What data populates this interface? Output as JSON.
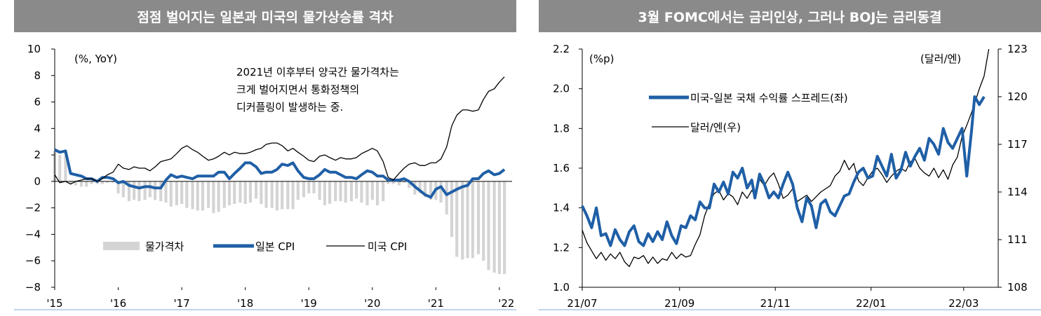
{
  "left": {
    "title": "점점 벌어지는 일본과 미국의 물가상승률 격차",
    "unit": "(%, YoY)",
    "annotation": [
      "2021년 이후부터 양국간 물가격차는",
      "크게 벌어지면서 통화정책의",
      "디커플링이 발생하는 중."
    ],
    "legend": [
      "물가격차",
      "일본 CPI",
      "미국 CPI"
    ]
  },
  "right": {
    "title": "3월 FOMC에서는 금리인상, 그러나 BOJ는 금리동결",
    "unit_left": "(%p)",
    "unit_right": "(달러/엔)",
    "legend": [
      "미국-일본 국채 수익률 스프레드(좌)",
      "달러/엔(우)"
    ]
  },
  "chart_data": [
    {
      "type": "line",
      "title": "점점 벌어지는 일본과 미국의 물가상승률 격차",
      "ylabel": "(%, YoY)",
      "ylim": [
        -8,
        10
      ],
      "yticks": [
        10,
        8,
        6,
        4,
        2,
        0,
        -2,
        -4,
        -6,
        -8
      ],
      "ytick_labels": [
        "10",
        "8",
        "6",
        "4",
        "2",
        "0",
        "−2",
        "−4",
        "−6",
        "−8"
      ],
      "xticks": [
        "'15",
        "'16",
        "'17",
        "'18",
        "'19",
        "'20",
        "'21",
        "'22"
      ],
      "xlim": [
        2015.0,
        2022.2
      ],
      "legend_position": "bottom-center",
      "series": [
        {
          "name": "물가격차",
          "kind": "bar",
          "color": "#d4d4d4",
          "x": [
            2015.0,
            2015.08,
            2015.17,
            2015.25,
            2015.33,
            2015.42,
            2015.5,
            2015.58,
            2015.67,
            2015.75,
            2015.83,
            2015.92,
            2016.0,
            2016.08,
            2016.17,
            2016.25,
            2016.33,
            2016.42,
            2016.5,
            2016.58,
            2016.67,
            2016.75,
            2016.83,
            2016.92,
            2017.0,
            2017.08,
            2017.17,
            2017.25,
            2017.33,
            2017.42,
            2017.5,
            2017.58,
            2017.67,
            2017.75,
            2017.83,
            2017.92,
            2018.0,
            2018.08,
            2018.17,
            2018.25,
            2018.33,
            2018.42,
            2018.5,
            2018.58,
            2018.67,
            2018.75,
            2018.83,
            2018.92,
            2019.0,
            2019.08,
            2019.17,
            2019.25,
            2019.33,
            2019.42,
            2019.5,
            2019.58,
            2019.67,
            2019.75,
            2019.83,
            2019.92,
            2020.0,
            2020.08,
            2020.17,
            2020.25,
            2020.33,
            2020.42,
            2020.5,
            2020.58,
            2020.67,
            2020.75,
            2020.83,
            2020.92,
            2021.0,
            2021.08,
            2021.17,
            2021.25,
            2021.33,
            2021.42,
            2021.5,
            2021.58,
            2021.67,
            2021.75,
            2021.83,
            2021.92,
            2022.0,
            2022.08
          ],
          "values": [
            2.3,
            2.0,
            2.2,
            -0.2,
            -0.3,
            -0.4,
            -0.4,
            -0.2,
            -0.2,
            -0.2,
            -0.1,
            -0.1,
            -0.9,
            -1.2,
            -1.5,
            -1.4,
            -1.5,
            -1.4,
            -1.2,
            -1.4,
            -1.5,
            -1.6,
            -1.9,
            -1.8,
            -1.7,
            -2.0,
            -2.1,
            -2.2,
            -2.2,
            -2.0,
            -2.4,
            -2.3,
            -2.0,
            -1.8,
            -1.7,
            -1.6,
            -1.7,
            -1.6,
            -1.3,
            -1.7,
            -2.0,
            -2.0,
            -2.2,
            -2.1,
            -2.1,
            -2.1,
            -1.4,
            -1.2,
            -0.9,
            -0.9,
            -1.4,
            -1.8,
            -1.7,
            -1.5,
            -1.5,
            -1.6,
            -1.5,
            -1.3,
            -1.6,
            -1.8,
            -1.4,
            -1.8,
            -1.5,
            -0.2,
            -0.2,
            -0.3,
            -0.1,
            -0.5,
            -1.0,
            -0.9,
            -1.2,
            -1.4,
            -1.4,
            -1.6,
            -2.5,
            -4.2,
            -5.7,
            -5.9,
            -5.8,
            -5.8,
            -5.5,
            -6.0,
            -6.7,
            -6.9,
            -7.0,
            -7.0
          ]
        },
        {
          "name": "일본 CPI",
          "kind": "line",
          "color": "#1f5fa6",
          "x": [
            2015.0,
            2015.08,
            2015.17,
            2015.25,
            2015.33,
            2015.42,
            2015.5,
            2015.58,
            2015.67,
            2015.75,
            2015.83,
            2015.92,
            2016.0,
            2016.08,
            2016.17,
            2016.25,
            2016.33,
            2016.42,
            2016.5,
            2016.58,
            2016.67,
            2016.75,
            2016.83,
            2016.92,
            2017.0,
            2017.08,
            2017.17,
            2017.25,
            2017.33,
            2017.42,
            2017.5,
            2017.58,
            2017.67,
            2017.75,
            2017.83,
            2017.92,
            2018.0,
            2018.08,
            2018.17,
            2018.25,
            2018.33,
            2018.42,
            2018.5,
            2018.58,
            2018.67,
            2018.75,
            2018.83,
            2018.92,
            2019.0,
            2019.08,
            2019.17,
            2019.25,
            2019.33,
            2019.42,
            2019.5,
            2019.58,
            2019.67,
            2019.75,
            2019.83,
            2019.92,
            2020.0,
            2020.08,
            2020.17,
            2020.25,
            2020.33,
            2020.42,
            2020.5,
            2020.58,
            2020.67,
            2020.75,
            2020.83,
            2020.92,
            2021.0,
            2021.08,
            2021.17,
            2021.25,
            2021.33,
            2021.42,
            2021.5,
            2021.58,
            2021.67,
            2021.75,
            2021.83,
            2021.92,
            2022.0,
            2022.08
          ],
          "values": [
            2.4,
            2.2,
            2.3,
            0.6,
            0.5,
            0.4,
            0.2,
            0.2,
            0.0,
            0.3,
            0.3,
            0.2,
            -0.1,
            0.0,
            -0.3,
            -0.4,
            -0.5,
            -0.4,
            -0.4,
            -0.5,
            -0.5,
            0.1,
            0.5,
            0.3,
            0.4,
            0.3,
            0.2,
            0.4,
            0.4,
            0.4,
            0.4,
            0.7,
            0.7,
            0.2,
            0.6,
            1.0,
            1.4,
            1.4,
            1.1,
            0.6,
            0.7,
            0.7,
            0.9,
            1.3,
            1.2,
            1.4,
            0.8,
            0.3,
            0.2,
            0.2,
            0.5,
            0.9,
            0.7,
            0.7,
            0.5,
            0.3,
            0.3,
            0.2,
            0.5,
            0.8,
            0.7,
            0.4,
            0.4,
            0.1,
            0.1,
            0.1,
            0.2,
            0.0,
            -0.4,
            -0.7,
            -1.0,
            -1.2,
            -0.6,
            -0.4,
            -1.0,
            -0.8,
            -0.6,
            -0.4,
            -0.3,
            0.2,
            0.2,
            0.6,
            0.8,
            0.5,
            0.6,
            0.9
          ]
        },
        {
          "name": "미국 CPI",
          "kind": "line",
          "color": "#000000",
          "x": [
            2015.0,
            2015.08,
            2015.17,
            2015.25,
            2015.33,
            2015.42,
            2015.5,
            2015.58,
            2015.67,
            2015.75,
            2015.83,
            2015.92,
            2016.0,
            2016.08,
            2016.17,
            2016.25,
            2016.33,
            2016.42,
            2016.5,
            2016.58,
            2016.67,
            2016.75,
            2016.83,
            2016.92,
            2017.0,
            2017.08,
            2017.17,
            2017.25,
            2017.33,
            2017.42,
            2017.5,
            2017.58,
            2017.67,
            2017.75,
            2017.83,
            2017.92,
            2018.0,
            2018.08,
            2018.17,
            2018.25,
            2018.33,
            2018.42,
            2018.5,
            2018.58,
            2018.67,
            2018.75,
            2018.83,
            2018.92,
            2019.0,
            2019.08,
            2019.17,
            2019.25,
            2019.33,
            2019.42,
            2019.5,
            2019.58,
            2019.67,
            2019.75,
            2019.83,
            2019.92,
            2020.0,
            2020.08,
            2020.17,
            2020.25,
            2020.33,
            2020.42,
            2020.5,
            2020.58,
            2020.67,
            2020.75,
            2020.83,
            2020.92,
            2021.0,
            2021.08,
            2021.17,
            2021.25,
            2021.33,
            2021.42,
            2021.5,
            2021.58,
            2021.67,
            2021.75,
            2021.83,
            2021.92,
            2022.0,
            2022.08
          ],
          "values": [
            0.5,
            -0.1,
            0.0,
            -0.2,
            0.0,
            0.1,
            0.2,
            0.2,
            0.0,
            0.2,
            0.5,
            0.7,
            1.3,
            1.0,
            0.9,
            1.1,
            1.0,
            1.0,
            0.8,
            1.1,
            1.5,
            1.6,
            1.7,
            2.1,
            2.5,
            2.7,
            2.4,
            2.2,
            1.9,
            1.6,
            1.7,
            1.9,
            2.2,
            2.0,
            2.2,
            2.1,
            2.1,
            2.2,
            2.4,
            2.5,
            2.8,
            2.9,
            2.9,
            2.7,
            2.3,
            2.5,
            2.2,
            1.9,
            1.6,
            1.5,
            1.9,
            2.0,
            1.8,
            1.6,
            1.8,
            1.7,
            1.7,
            1.8,
            2.1,
            2.3,
            2.5,
            2.3,
            1.5,
            0.3,
            0.1,
            0.6,
            1.0,
            1.3,
            1.4,
            1.2,
            1.2,
            1.4,
            1.4,
            1.7,
            2.6,
            4.2,
            5.0,
            5.4,
            5.4,
            5.3,
            5.4,
            6.2,
            6.8,
            7.0,
            7.5,
            7.9
          ]
        }
      ]
    },
    {
      "type": "line",
      "title": "3월 FOMC에서는 금리인상, 그러나 BOJ는 금리동결",
      "ylabel": "(%p)",
      "y2label": "(달러/엔)",
      "ylim": [
        1.0,
        2.2
      ],
      "y2lim": [
        108,
        123
      ],
      "yticks": [
        "1.0",
        "1.2",
        "1.4",
        "1.6",
        "1.8",
        "2.0",
        "2.2"
      ],
      "y2ticks": [
        "108",
        "111",
        "114",
        "117",
        "120",
        "123"
      ],
      "xticks": [
        "21/07",
        "21/09",
        "21/11",
        "22/01",
        "22/03"
      ],
      "x_unit": "days since 2021-07-01",
      "xlim": [
        0,
        265
      ],
      "legend_position": "top-center",
      "series": [
        {
          "name": "미국-일본 국채 수익률 스프레드(좌)",
          "axis": "left",
          "color": "#1f5fa6",
          "x": [
            0,
            3,
            6,
            9,
            12,
            15,
            18,
            21,
            24,
            27,
            30,
            33,
            36,
            39,
            42,
            45,
            48,
            51,
            54,
            57,
            60,
            63,
            66,
            69,
            72,
            75,
            78,
            81,
            84,
            87,
            90,
            93,
            96,
            99,
            102,
            105,
            108,
            110,
            113,
            116,
            119,
            122,
            125,
            128,
            131,
            134,
            137,
            140,
            143,
            146,
            149,
            152,
            155,
            158,
            161,
            164,
            167,
            170,
            173,
            176,
            179,
            182,
            185,
            188,
            191,
            194,
            197,
            200,
            203,
            206,
            209,
            212,
            215,
            218,
            221,
            224,
            227,
            230,
            233,
            236,
            239,
            242,
            245,
            248,
            250,
            253,
            256
          ],
          "values": [
            1.41,
            1.36,
            1.3,
            1.4,
            1.26,
            1.27,
            1.21,
            1.29,
            1.24,
            1.21,
            1.28,
            1.31,
            1.23,
            1.21,
            1.27,
            1.23,
            1.28,
            1.24,
            1.33,
            1.26,
            1.22,
            1.31,
            1.3,
            1.36,
            1.34,
            1.43,
            1.4,
            1.4,
            1.52,
            1.48,
            1.53,
            1.47,
            1.58,
            1.55,
            1.6,
            1.5,
            1.54,
            1.45,
            1.57,
            1.52,
            1.45,
            1.48,
            1.45,
            1.52,
            1.58,
            1.52,
            1.4,
            1.33,
            1.45,
            1.41,
            1.3,
            1.42,
            1.44,
            1.38,
            1.36,
            1.41,
            1.46,
            1.47,
            1.53,
            1.58,
            1.6,
            1.55,
            1.56,
            1.66,
            1.61,
            1.56,
            1.67,
            1.55,
            1.59,
            1.68,
            1.61,
            1.66,
            1.7,
            1.64,
            1.75,
            1.72,
            1.67,
            1.8,
            1.73,
            1.7,
            1.75,
            1.8,
            1.56,
            1.79,
            1.96,
            1.92,
            1.96
          ]
        },
        {
          "name": "달러/엔(우)",
          "axis": "right",
          "color": "#000000",
          "x": [
            0,
            3,
            6,
            9,
            12,
            15,
            18,
            21,
            24,
            27,
            30,
            33,
            36,
            39,
            42,
            45,
            48,
            51,
            54,
            57,
            60,
            63,
            66,
            69,
            72,
            75,
            78,
            81,
            84,
            87,
            90,
            93,
            96,
            99,
            102,
            105,
            108,
            110,
            113,
            116,
            119,
            122,
            125,
            128,
            131,
            134,
            137,
            140,
            143,
            146,
            149,
            152,
            155,
            158,
            161,
            164,
            167,
            170,
            173,
            176,
            179,
            182,
            185,
            188,
            191,
            194,
            197,
            200,
            203,
            206,
            209,
            212,
            215,
            218,
            221,
            224,
            227,
            230,
            233,
            236,
            239,
            242,
            245,
            248,
            250,
            253,
            256,
            259
          ],
          "values": [
            111.6,
            110.8,
            110.3,
            109.8,
            110.2,
            109.7,
            110.1,
            109.8,
            110.2,
            109.6,
            109.3,
            109.9,
            109.8,
            110.0,
            109.5,
            109.9,
            109.5,
            109.8,
            109.7,
            110.2,
            109.8,
            110.1,
            109.9,
            110.0,
            110.7,
            111.3,
            112.5,
            113.3,
            113.9,
            114.1,
            113.5,
            113.9,
            113.7,
            113.2,
            114.0,
            113.6,
            114.1,
            113.8,
            114.8,
            114.4,
            114.9,
            115.2,
            114.5,
            113.6,
            113.8,
            114.2,
            113.4,
            113.6,
            113.8,
            113.4,
            113.7,
            114.0,
            114.2,
            114.4,
            115.0,
            115.3,
            116.0,
            115.4,
            115.8,
            114.7,
            114.4,
            114.9,
            115.3,
            115.5,
            115.1,
            114.6,
            115.0,
            115.3,
            115.5,
            115.3,
            115.9,
            116.1,
            115.5,
            115.2,
            115.0,
            115.5,
            114.9,
            115.4,
            114.8,
            115.7,
            116.2,
            117.5,
            118.2,
            119.0,
            119.6,
            120.5,
            121.3,
            123.0
          ]
        }
      ]
    }
  ]
}
